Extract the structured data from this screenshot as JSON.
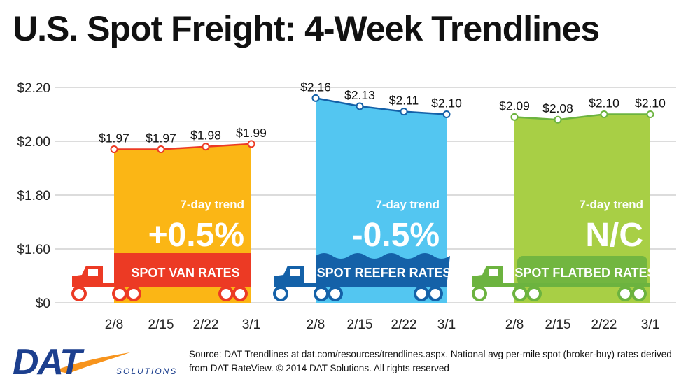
{
  "title": "U.S. Spot Freight: 4-Week Trendlines",
  "source_note": "Source: DAT Trendlines at dat.com/resources/trendlines.aspx. National avg per-mile spot (broker-buy) rates derived from DAT RateView. © 2014 DAT Solutions. All rights reserved",
  "logo": {
    "name": "DAT",
    "tagline": "SOLUTIONS"
  },
  "trend_label": "7-day trend",
  "y_tick_labels": [
    "$2.20",
    "$2.00",
    "$1.80",
    "$1.60",
    "$0"
  ],
  "colors": {
    "van": "#fbb615",
    "van_dark": "#ec3a24",
    "reefer": "#53c6f1",
    "reefer_dark": "#1461a8",
    "flatbed": "#a8cf45",
    "flatbed_dark": "#6cb33f"
  },
  "chart_data": {
    "type": "area",
    "title": "U.S. Spot Freight: 4-Week Trendlines",
    "xlabel": "",
    "ylabel": "",
    "ylim": [
      1.5,
      2.2
    ],
    "yticks": [
      1.6,
      1.8,
      2.0,
      2.2
    ],
    "y_axis_break": true,
    "grid": true,
    "categories": [
      "2/8",
      "2/15",
      "2/22",
      "3/1"
    ],
    "series": [
      {
        "name": "SPOT VAN RATES",
        "values": [
          1.97,
          1.97,
          1.98,
          1.99
        ],
        "value_labels": [
          "$1.97",
          "$1.97",
          "$1.98",
          "$1.99"
        ],
        "trend": "+0.5%"
      },
      {
        "name": "SPOT REEFER RATES",
        "values": [
          2.16,
          2.13,
          2.11,
          2.1
        ],
        "value_labels": [
          "$2.16",
          "$2.13",
          "$2.11",
          "$2.10"
        ],
        "trend": "-0.5%"
      },
      {
        "name": "SPOT FLATBED RATES",
        "values": [
          2.09,
          2.08,
          2.1,
          2.1
        ],
        "value_labels": [
          "$2.09",
          "$2.08",
          "$2.10",
          "$2.10"
        ],
        "trend": "N/C"
      }
    ]
  }
}
